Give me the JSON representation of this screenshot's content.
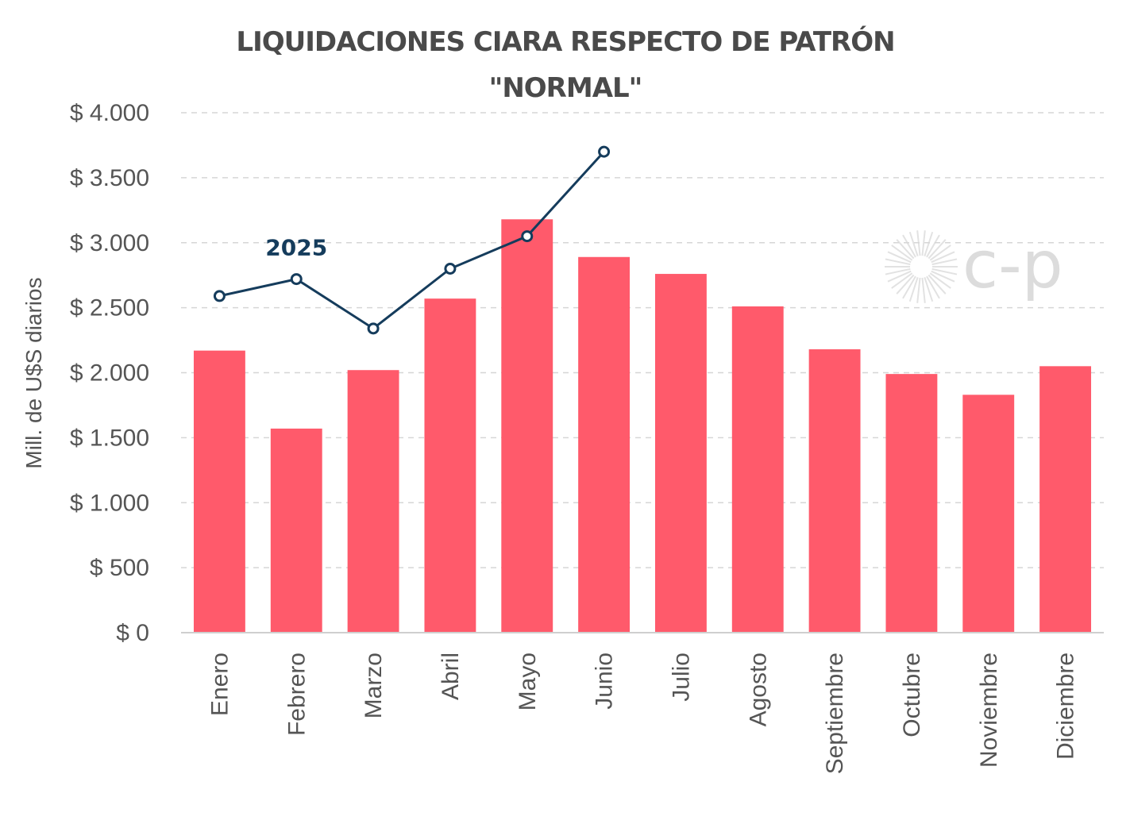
{
  "chart_data": {
    "type": "bar",
    "title_lines": [
      "LIQUIDACIONES CIARA RESPECTO DE PATRÓN",
      "\"NORMAL\""
    ],
    "ylabel": "Mill. de U$S diarios",
    "xlabel": "",
    "ylim": [
      0,
      4000
    ],
    "yticks": [
      0,
      500,
      1000,
      1500,
      2000,
      2500,
      3000,
      3500,
      4000
    ],
    "ytick_labels": [
      "$ 0",
      "$ 500",
      "$ 1.000",
      "$ 1.500",
      "$ 2.000",
      "$ 2.500",
      "$ 3.000",
      "$ 3.500",
      "$ 4.000"
    ],
    "categories": [
      "Enero",
      "Febrero",
      "Marzo",
      "Abril",
      "Mayo",
      "Junio",
      "Julio",
      "Agosto",
      "Septiembre",
      "Octubre",
      "Noviembre",
      "Diciembre"
    ],
    "bar_series": {
      "name": "Patrón normal",
      "color": "#ff5a6b",
      "values": [
        2170,
        1570,
        2020,
        2570,
        3180,
        2890,
        2760,
        2510,
        2180,
        1990,
        1830,
        2050
      ]
    },
    "line_series": {
      "name": "2025",
      "label": "2025",
      "color": "#153c5c",
      "values": [
        2590,
        2720,
        2340,
        2800,
        3050,
        3700
      ]
    },
    "grid": true,
    "watermark_text": "c-p"
  }
}
